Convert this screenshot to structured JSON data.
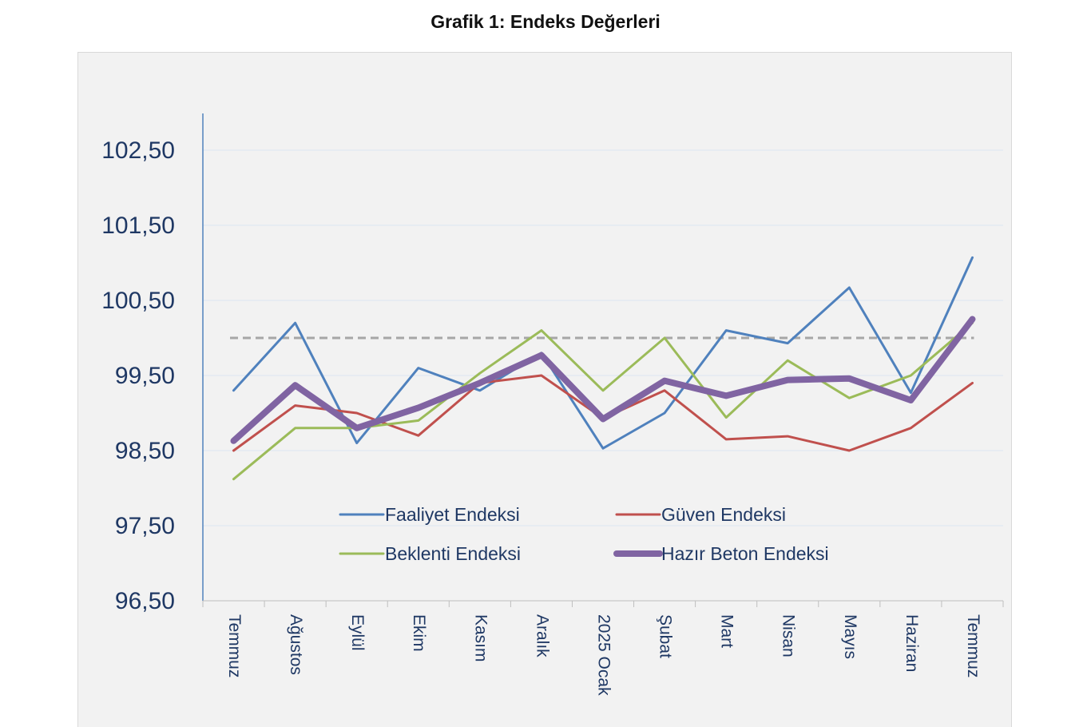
{
  "title": "Grafik 1: Endeks Değerleri",
  "chart_data": {
    "type": "line",
    "title": "Grafik 1: Endeks Değerleri",
    "xlabel": "",
    "ylabel": "",
    "categories": [
      "Temmuz",
      "Ağustos",
      "Eylül",
      "Ekim",
      "Kasım",
      "Aralık",
      "2025 Ocak",
      "Şubat",
      "Mart",
      "Nisan",
      "Mayıs",
      "Haziran",
      "Temmuz"
    ],
    "yticks": [
      "96,50",
      "97,50",
      "98,50",
      "99,50",
      "100,50",
      "101,50",
      "102,50"
    ],
    "ylim": [
      96.5,
      103.0
    ],
    "grid": true,
    "legend_position": "inside-bottom",
    "reference_line": 100.0,
    "series": [
      {
        "name": "Faaliyet Endeksi",
        "color": "#4f81bd",
        "values": [
          99.3,
          100.2,
          98.6,
          99.6,
          99.3,
          99.8,
          98.53,
          99.0,
          100.1,
          99.93,
          100.67,
          99.27,
          101.07
        ]
      },
      {
        "name": "Güven Endeksi",
        "color": "#c0504d",
        "values": [
          98.5,
          99.1,
          99.0,
          98.7,
          99.4,
          99.5,
          98.93,
          99.3,
          98.65,
          98.69,
          98.5,
          98.8,
          99.4
        ]
      },
      {
        "name": "Beklenti Endeksi",
        "color": "#9bbb59",
        "values": [
          98.12,
          98.8,
          98.8,
          98.9,
          99.53,
          100.1,
          99.3,
          100.0,
          98.94,
          99.7,
          99.2,
          99.5,
          100.2
        ]
      },
      {
        "name": "Hazır Beton Endeksi",
        "color": "#8064a2",
        "values": [
          98.63,
          99.37,
          98.8,
          99.07,
          99.4,
          99.77,
          98.92,
          99.43,
          99.23,
          99.44,
          99.46,
          99.17,
          100.25
        ]
      }
    ]
  }
}
